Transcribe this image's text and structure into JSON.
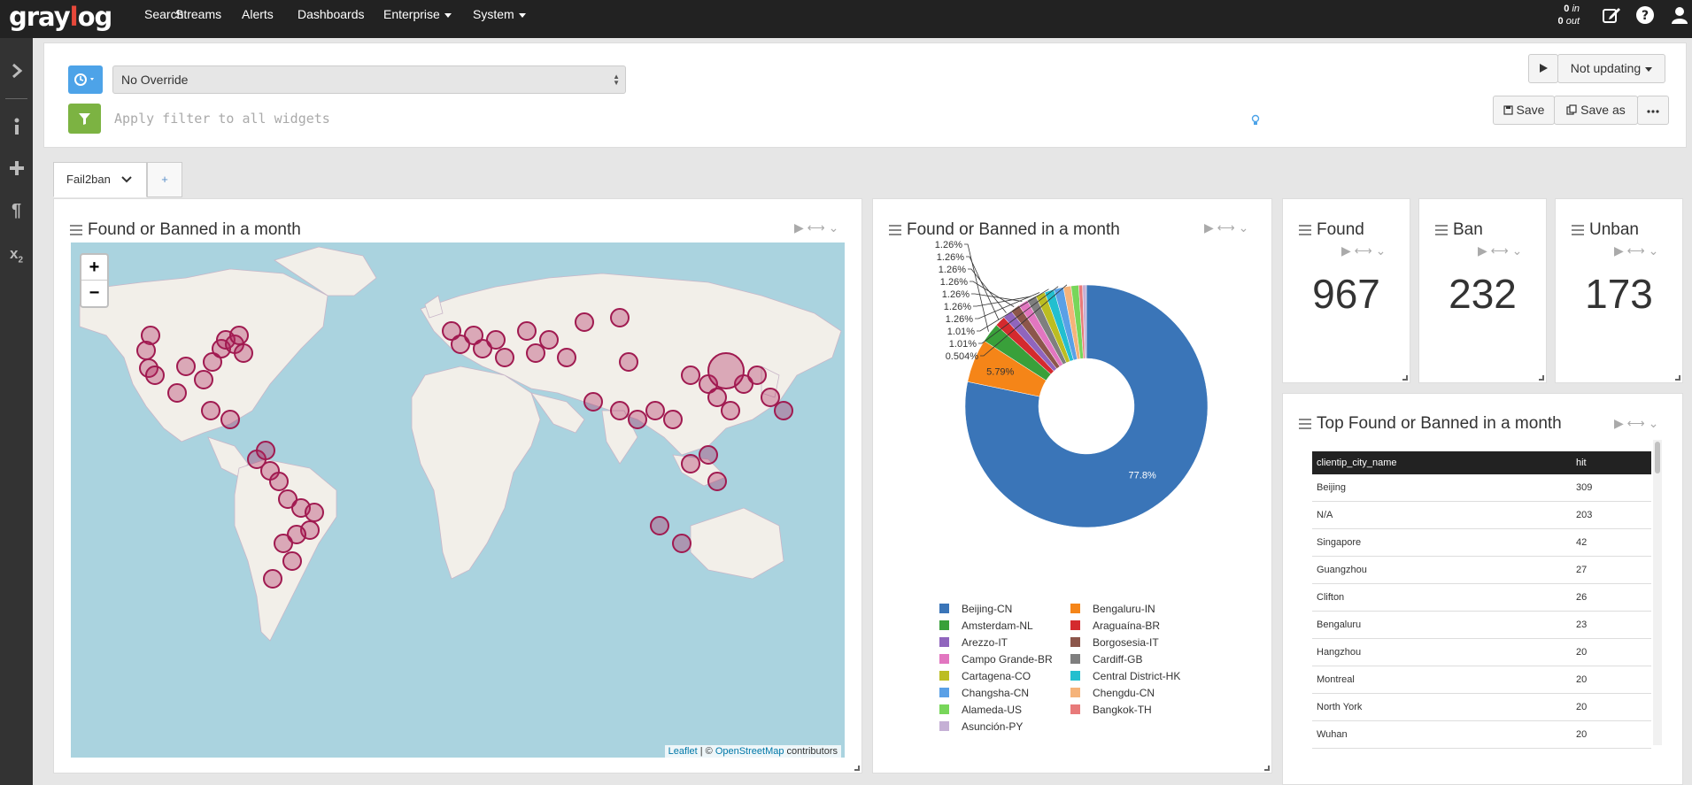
{
  "nav": {
    "items": [
      {
        "label": "Search"
      },
      {
        "label": "Streams"
      },
      {
        "label": "Alerts"
      },
      {
        "label": "Dashboards"
      },
      {
        "label": "Enterprise"
      },
      {
        "label": "System"
      }
    ],
    "throughput_in": "0",
    "throughput_in_suffix": "in",
    "throughput_out": "0",
    "throughput_out_suffix": "out"
  },
  "query": {
    "override_value": "No Override",
    "filter_placeholder": "Apply filter to all widgets",
    "play_label": "Not updating",
    "save_label": "Save",
    "save_as_label": "Save as"
  },
  "tabs": {
    "active": "Fail2ban",
    "add": "+"
  },
  "widgets": {
    "map": {
      "title": "Found or Banned in a month",
      "zoom_in": "+",
      "zoom_out": "−",
      "attrib_leaflet": "Leaflet",
      "attrib_sep": " | © ",
      "attrib_osm": "OpenStreetMap",
      "attrib_contrib": " contributors"
    },
    "pie": {
      "title": "Found or Banned in a month"
    },
    "found": {
      "title": "Found",
      "value": "967"
    },
    "ban": {
      "title": "Ban",
      "value": "232"
    },
    "unban": {
      "title": "Unban",
      "value": "173"
    },
    "table": {
      "title": "Top Found or Banned in a month",
      "columns": [
        "clientip_city_name",
        "hit"
      ],
      "rows": [
        [
          "Beijing",
          "309"
        ],
        [
          "N/A",
          "203"
        ],
        [
          "Singapore",
          "42"
        ],
        [
          "Guangzhou",
          "27"
        ],
        [
          "Clifton",
          "26"
        ],
        [
          "Bengaluru",
          "23"
        ],
        [
          "Hangzhou",
          "20"
        ],
        [
          "Montreal",
          "20"
        ],
        [
          "North York",
          "20"
        ],
        [
          "Wuhan",
          "20"
        ]
      ]
    }
  },
  "chart_data": {
    "type": "pie",
    "donut": true,
    "slices": [
      {
        "label": "Beijing-CN",
        "value": 77.8,
        "color": "#3a75b8"
      },
      {
        "label": "Bengaluru-IN",
        "value": 5.79,
        "color": "#f58518"
      },
      {
        "label": "Amsterdam-NL",
        "value": 2.6,
        "color": "#39a03a"
      },
      {
        "label": "Araguaína-BR",
        "value": 1.4,
        "color": "#d42a2e"
      },
      {
        "label": "Arezzo-IT",
        "value": 1.26,
        "color": "#9065bd"
      },
      {
        "label": "Borgosesia-IT",
        "value": 1.26,
        "color": "#8c564b"
      },
      {
        "label": "Campo Grande-BR",
        "value": 1.26,
        "color": "#e276c0"
      },
      {
        "label": "Cardiff-GB",
        "value": 1.26,
        "color": "#7f7f7f"
      },
      {
        "label": "Cartagena-CO",
        "value": 1.26,
        "color": "#bcbd22"
      },
      {
        "label": "Central District-HK",
        "value": 1.26,
        "color": "#22bfcf"
      },
      {
        "label": "Changsha-CN",
        "value": 1.26,
        "color": "#5aa0e6"
      },
      {
        "label": "Chengdu-CN",
        "value": 1.01,
        "color": "#f5b37a"
      },
      {
        "label": "Alameda-US",
        "value": 1.01,
        "color": "#78d65a"
      },
      {
        "label": "Bangkok-TH",
        "value": 0.504,
        "color": "#e87a7a"
      },
      {
        "label": "Asunción-PY",
        "value": 0.504,
        "color": "#c5b0d5"
      }
    ],
    "inside_labels": [
      "77.8%",
      "5.79%"
    ],
    "outside_labels": [
      "1.26%",
      "1.26%",
      "1.26%",
      "1.26%",
      "1.26%",
      "1.26%",
      "1.26%",
      "1.01%",
      "1.01%",
      "0.504%"
    ]
  }
}
